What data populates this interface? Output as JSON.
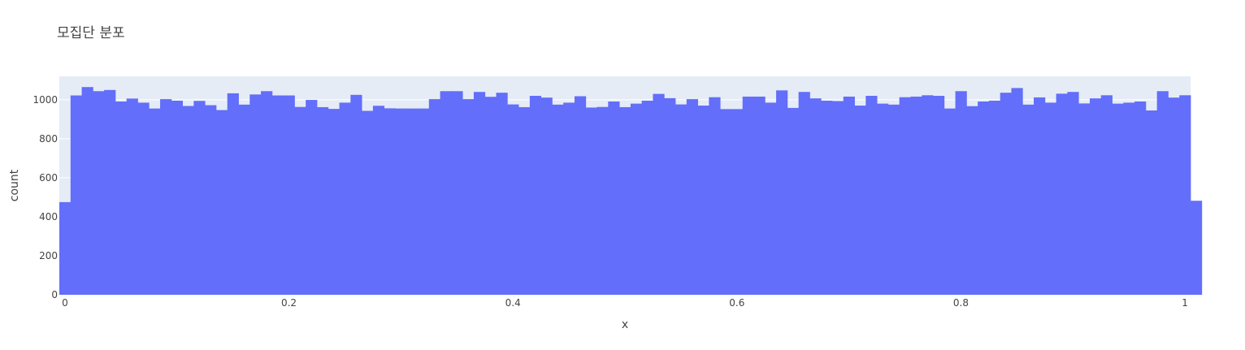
{
  "chart_data": {
    "type": "bar",
    "title": "모집단 분포",
    "xlabel": "x",
    "ylabel": "count",
    "xlim": [
      -0.005,
      1.005
    ],
    "ylim": [
      0,
      1120
    ],
    "x_ticks": [
      0,
      0.2,
      0.4,
      0.6,
      0.8,
      1
    ],
    "x_tick_labels": [
      "0",
      "0.2",
      "0.4",
      "0.6",
      "0.8",
      "1"
    ],
    "y_ticks": [
      0,
      200,
      400,
      600,
      800,
      1000
    ],
    "y_tick_labels": [
      "0",
      "200",
      "400",
      "600",
      "800",
      "1000"
    ],
    "grid": true,
    "bar_color": "#636efa",
    "plot_bgcolor": "#e5ecf6",
    "bin_start": -0.005,
    "bin_width": 0.01,
    "values": [
      475,
      1022,
      1065,
      1044,
      1050,
      991,
      1006,
      985,
      955,
      1003,
      995,
      968,
      994,
      972,
      947,
      1033,
      975,
      1027,
      1044,
      1022,
      1022,
      963,
      999,
      962,
      953,
      985,
      1025,
      943,
      969,
      956,
      955,
      955,
      955,
      1003,
      1044,
      1044,
      1003,
      1040,
      1015,
      1036,
      976,
      962,
      1020,
      1011,
      975,
      985,
      1018,
      960,
      963,
      991,
      962,
      980,
      995,
      1030,
      1008,
      976,
      1003,
      970,
      1013,
      952,
      952,
      1016,
      1016,
      985,
      1048,
      958,
      1040,
      1007,
      995,
      993,
      1016,
      970,
      1020,
      980,
      975,
      1013,
      1016,
      1023,
      1020,
      955,
      1044,
      967,
      991,
      995,
      1036,
      1060,
      975,
      1012,
      985,
      1031,
      1040,
      981,
      1007,
      1023,
      980,
      985,
      991,
      945,
      1044,
      1011,
      1023,
      482
    ]
  }
}
